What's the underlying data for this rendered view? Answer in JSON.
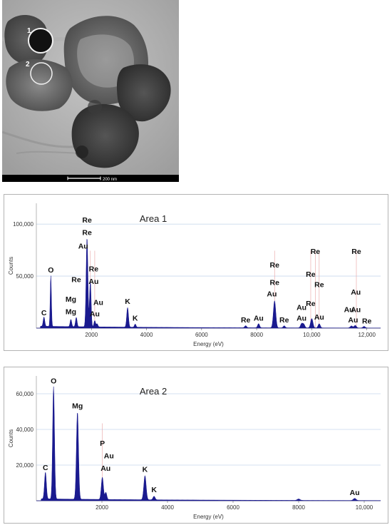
{
  "micrograph": {
    "markers": [
      "1",
      "2"
    ],
    "scale_bar_label": "200 nm"
  },
  "chart_data": [
    {
      "type": "area",
      "title": "Area 1",
      "xlabel": "Energy (eV)",
      "ylabel": "Counts",
      "xlim": [
        0,
        12500
      ],
      "ylim": [
        0,
        120000
      ],
      "x_ticks": [
        2000,
        4000,
        6000,
        8000,
        10000,
        12000
      ],
      "x_tick_labels": [
        "2000",
        "4000",
        "6000",
        "8000",
        "10,000",
        "12,000"
      ],
      "y_ticks": [
        50000,
        100000
      ],
      "y_tick_labels": [
        "50,000",
        "100,000"
      ],
      "grid": true,
      "color": "#1a1a8f",
      "peaks": [
        {
          "x": 277,
          "y": 9000,
          "w": 40
        },
        {
          "x": 525,
          "y": 49000,
          "w": 30
        },
        {
          "x": 1254,
          "y": 7000,
          "w": 40
        },
        {
          "x": 1450,
          "y": 9000,
          "w": 40
        },
        {
          "x": 1840,
          "y": 86000,
          "w": 45
        },
        {
          "x": 1960,
          "y": 44000,
          "w": 40
        },
        {
          "x": 2120,
          "y": 6000,
          "w": 40
        },
        {
          "x": 2205,
          "y": 3000,
          "w": 40
        },
        {
          "x": 3313,
          "y": 19000,
          "w": 45
        },
        {
          "x": 3590,
          "y": 3000,
          "w": 40
        },
        {
          "x": 7600,
          "y": 2000,
          "w": 50
        },
        {
          "x": 8070,
          "y": 4000,
          "w": 50
        },
        {
          "x": 8650,
          "y": 26000,
          "w": 60
        },
        {
          "x": 9000,
          "y": 2000,
          "w": 50
        },
        {
          "x": 9630,
          "y": 4000,
          "w": 55
        },
        {
          "x": 9710,
          "y": 3500,
          "w": 55
        },
        {
          "x": 10000,
          "y": 9000,
          "w": 60
        },
        {
          "x": 10270,
          "y": 4000,
          "w": 55
        },
        {
          "x": 11440,
          "y": 2000,
          "w": 60
        },
        {
          "x": 11580,
          "y": 2500,
          "w": 60
        },
        {
          "x": 11900,
          "y": 1500,
          "w": 60
        }
      ],
      "annotations": [
        {
          "text": "C",
          "x": 277,
          "y": 11000
        },
        {
          "text": "O",
          "x": 525,
          "y": 52000
        },
        {
          "text": "Mg",
          "x": 1254,
          "y": 12000
        },
        {
          "text": "Mg",
          "x": 1254,
          "y": 24000
        },
        {
          "text": "Re",
          "x": 1450,
          "y": 43000
        },
        {
          "text": "Au",
          "x": 1700,
          "y": 75000
        },
        {
          "text": "Re",
          "x": 1840,
          "y": 88000
        },
        {
          "text": "Re",
          "x": 1840,
          "y": 100000
        },
        {
          "text": "Re",
          "x": 2080,
          "y": 53000
        },
        {
          "text": "Au",
          "x": 2080,
          "y": 41000
        },
        {
          "text": "Au",
          "x": 2120,
          "y": 10000
        },
        {
          "text": "Au",
          "x": 2250,
          "y": 21000
        },
        {
          "text": "K",
          "x": 3313,
          "y": 22000
        },
        {
          "text": "K",
          "x": 3590,
          "y": 6000
        },
        {
          "text": "Re",
          "x": 7600,
          "y": 4000
        },
        {
          "text": "Au",
          "x": 8070,
          "y": 6000
        },
        {
          "text": "Au",
          "x": 8550,
          "y": 29000
        },
        {
          "text": "Re",
          "x": 8650,
          "y": 40000
        },
        {
          "text": "Re",
          "x": 8650,
          "y": 57000
        },
        {
          "text": "Re",
          "x": 9000,
          "y": 4000
        },
        {
          "text": "Au",
          "x": 9630,
          "y": 16000
        },
        {
          "text": "Au",
          "x": 9630,
          "y": 6000
        },
        {
          "text": "Re",
          "x": 9960,
          "y": 20000
        },
        {
          "text": "Re",
          "x": 9960,
          "y": 48000
        },
        {
          "text": "Re",
          "x": 10130,
          "y": 70000
        },
        {
          "text": "Re",
          "x": 10270,
          "y": 38000
        },
        {
          "text": "Au",
          "x": 10270,
          "y": 7000
        },
        {
          "text": "Au",
          "x": 11350,
          "y": 14000
        },
        {
          "text": "Au",
          "x": 11600,
          "y": 14000
        },
        {
          "text": "Au",
          "x": 11600,
          "y": 31000
        },
        {
          "text": "Re",
          "x": 11620,
          "y": 70000
        },
        {
          "text": "Au",
          "x": 11500,
          "y": 4000
        },
        {
          "text": "Re",
          "x": 12000,
          "y": 3000
        }
      ],
      "leader_lines": [
        1960,
        2120,
        8650,
        9963,
        10130,
        10270,
        11620
      ]
    },
    {
      "type": "area",
      "title": "Area 2",
      "xlabel": "Energy (eV)",
      "ylabel": "Counts",
      "xlim": [
        0,
        10500
      ],
      "ylim": [
        0,
        70000
      ],
      "x_ticks": [
        2000,
        4000,
        6000,
        8000,
        10000
      ],
      "x_tick_labels": [
        "2000",
        "4000",
        "6000",
        "8000",
        "10,000"
      ],
      "y_ticks": [
        20000,
        40000,
        60000
      ],
      "y_tick_labels": [
        "20,000",
        "40,000",
        "60,000"
      ],
      "grid": true,
      "color": "#1a1a8f",
      "peaks": [
        {
          "x": 277,
          "y": 15000,
          "w": 40
        },
        {
          "x": 525,
          "y": 63000,
          "w": 40
        },
        {
          "x": 1254,
          "y": 49000,
          "w": 45
        },
        {
          "x": 2013,
          "y": 12500,
          "w": 45
        },
        {
          "x": 2120,
          "y": 4000,
          "w": 40
        },
        {
          "x": 3313,
          "y": 13500,
          "w": 50
        },
        {
          "x": 3590,
          "y": 2000,
          "w": 45
        },
        {
          "x": 8000,
          "y": 800,
          "w": 60
        },
        {
          "x": 9710,
          "y": 1200,
          "w": 60
        }
      ],
      "annotations": [
        {
          "text": "C",
          "x": 277,
          "y": 16500
        },
        {
          "text": "O",
          "x": 525,
          "y": 65000
        },
        {
          "text": "Mg",
          "x": 1254,
          "y": 51000
        },
        {
          "text": "P",
          "x": 2013,
          "y": 30000
        },
        {
          "text": "Au",
          "x": 2213,
          "y": 23000
        },
        {
          "text": "Au",
          "x": 2113,
          "y": 16000
        },
        {
          "text": "K",
          "x": 3313,
          "y": 15500
        },
        {
          "text": "K",
          "x": 3590,
          "y": 4000
        },
        {
          "text": "Au",
          "x": 9710,
          "y": 2500
        }
      ],
      "leader_lines": [
        2013
      ]
    }
  ]
}
